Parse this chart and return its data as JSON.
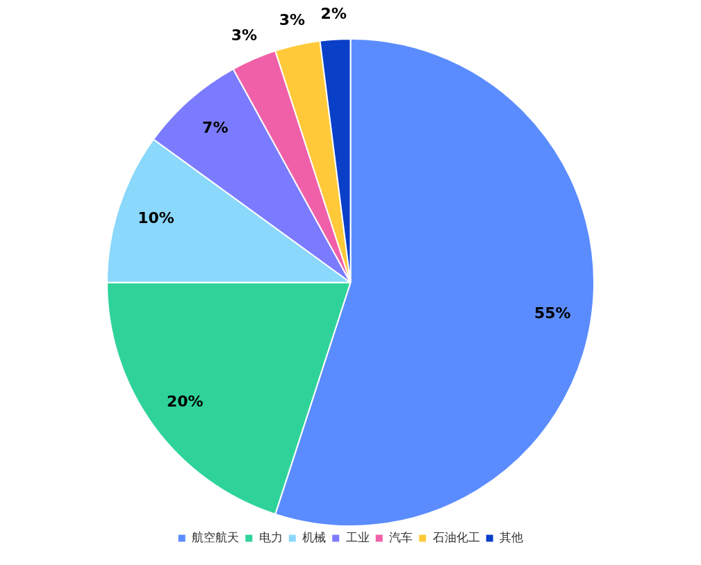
{
  "chart_data": {
    "type": "pie",
    "categories": [
      "航空航天",
      "电力",
      "机械",
      "工业",
      "汽车",
      "石油化工",
      "其他"
    ],
    "values": [
      55,
      20,
      10,
      7,
      3,
      3,
      2
    ],
    "colors": [
      "#5b8cff",
      "#2fd39a",
      "#8ad8fb",
      "#7b7bff",
      "#f060a8",
      "#ffc93a",
      "#0a3fc8"
    ],
    "value_labels": [
      "55%",
      "20%",
      "10%",
      "7%",
      "3%",
      "3%",
      "2%"
    ],
    "legend": "bottom"
  }
}
